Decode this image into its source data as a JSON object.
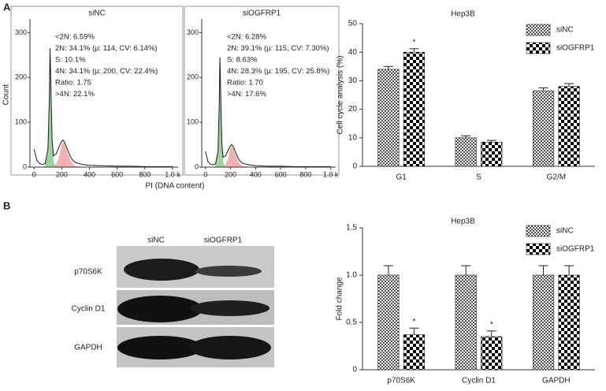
{
  "panel_labels": [
    "A",
    "B"
  ],
  "chart_data": [
    {
      "type": "line",
      "title": "siNC",
      "ylabel": "Count",
      "xlabel": "PI (DNA content)",
      "x": [
        0,
        20,
        40,
        60,
        80,
        100,
        110,
        115,
        120,
        130,
        140,
        160,
        180,
        200,
        210,
        220,
        240,
        260,
        280,
        300,
        350,
        400,
        500,
        600,
        700,
        800,
        900,
        1000
      ],
      "series": [
        {
          "color": "#1a1a1a",
          "values": [
            40,
            15,
            8,
            6,
            8,
            40,
            150,
            265,
            200,
            60,
            25,
            30,
            45,
            58,
            60,
            55,
            40,
            25,
            15,
            10,
            6,
            4,
            3,
            2,
            2,
            1,
            1,
            1
          ]
        },
        {
          "color": "#8fc98f",
          "fill": true,
          "values": [
            0,
            0,
            0,
            0,
            2,
            30,
            140,
            255,
            190,
            50,
            10,
            1,
            0,
            0,
            0,
            0,
            0,
            0,
            0,
            0,
            0,
            0,
            0,
            0,
            0,
            0,
            0,
            0
          ]
        },
        {
          "color": "#f2a3a3",
          "fill": true,
          "values": [
            0,
            0,
            0,
            0,
            0,
            0,
            0,
            0,
            0,
            0,
            0,
            5,
            20,
            50,
            55,
            50,
            30,
            15,
            6,
            2,
            0,
            0,
            0,
            0,
            0,
            0,
            0,
            0
          ]
        }
      ],
      "xlim": [
        -30,
        1040
      ],
      "ylim": [
        0,
        320
      ],
      "xticks": [
        0,
        200,
        400,
        600,
        800,
        {
          "value": 1000,
          "label": "1.0 k"
        }
      ],
      "yticks": [
        0,
        100,
        200,
        300
      ],
      "annotations": [
        "<2N: 6.59%",
        "2N: 34.1% (µ: 114, CV: 6.14%)",
        "S: 10.1%",
        "4N: 34.1% (µ: 200, CV: 22.4%)",
        "Ratio: 1.75",
        ">4N: 22.1%"
      ]
    },
    {
      "type": "line",
      "title": "siOGFRP1",
      "x": [
        0,
        20,
        40,
        60,
        80,
        100,
        110,
        115,
        120,
        130,
        140,
        160,
        180,
        200,
        210,
        220,
        240,
        260,
        280,
        300,
        350,
        400,
        500,
        600,
        700,
        800,
        900,
        1000
      ],
      "series": [
        {
          "color": "#1a1a1a",
          "values": [
            35,
            12,
            6,
            5,
            7,
            35,
            140,
            245,
            185,
            55,
            22,
            25,
            38,
            48,
            50,
            47,
            33,
            20,
            12,
            8,
            5,
            3,
            2,
            2,
            1,
            1,
            1,
            1
          ]
        },
        {
          "color": "#8fc98f",
          "fill": true,
          "values": [
            0,
            0,
            0,
            0,
            2,
            28,
            130,
            235,
            175,
            45,
            9,
            1,
            0,
            0,
            0,
            0,
            0,
            0,
            0,
            0,
            0,
            0,
            0,
            0,
            0,
            0,
            0,
            0
          ]
        },
        {
          "color": "#f2a3a3",
          "fill": true,
          "values": [
            0,
            0,
            0,
            0,
            0,
            0,
            0,
            0,
            0,
            0,
            0,
            4,
            17,
            42,
            46,
            42,
            25,
            12,
            5,
            2,
            0,
            0,
            0,
            0,
            0,
            0,
            0,
            0
          ]
        }
      ],
      "xlim": [
        -30,
        1040
      ],
      "ylim": [
        0,
        320
      ],
      "xticks": [
        0,
        200,
        400,
        600,
        800,
        {
          "value": 1000,
          "label": "1.0 k"
        }
      ],
      "yticks": [
        0,
        100,
        200,
        300
      ],
      "annotations": [
        "<2N: 6.28%",
        "2N: 39.1% (µ: 115, CV: 7.30%)",
        "S: 8.63%",
        "4N: 28.3% (µ: 195, CV: 25.8%)",
        "Ratio: 1.70",
        ">4N: 17.6%"
      ]
    },
    {
      "type": "bar",
      "title": "Hep3B",
      "ylabel": "Cell cycle analysis (%)",
      "categories": [
        "G1",
        "S",
        "G2/M"
      ],
      "series": [
        {
          "name": "siNC",
          "color": "#4d4d4d",
          "values": [
            34,
            10,
            26.5
          ],
          "errors": [
            1,
            0.7,
            1
          ]
        },
        {
          "name": "siOGFRP1",
          "color": "#000000",
          "values": [
            40,
            8.5,
            28
          ],
          "errors": [
            1.2,
            0.6,
            1
          ]
        }
      ],
      "ylim": [
        0,
        50
      ],
      "yticks": [
        0,
        10,
        20,
        30,
        40,
        50
      ],
      "stars": [
        {
          "text": "*",
          "category": 0,
          "series": 1
        }
      ]
    },
    {
      "type": "bar",
      "title": "Hep3B",
      "ylabel": "Fold change",
      "categories": [
        "p70S6K",
        "Cyclin D1",
        "GAPDH"
      ],
      "series": [
        {
          "name": "siNC",
          "color": "#4d4d4d",
          "values": [
            1,
            1,
            1
          ],
          "errors": [
            0.1,
            0.1,
            0.1
          ]
        },
        {
          "name": "siOGFRP1",
          "color": "#000000",
          "values": [
            0.37,
            0.35,
            1
          ],
          "errors": [
            0.07,
            0.06,
            0.1
          ]
        }
      ],
      "ylim": [
        0,
        1.5
      ],
      "yticks": [
        0,
        0.5,
        {
          "value": 1,
          "label": "1.0"
        },
        1.5
      ],
      "stars": [
        {
          "text": "*",
          "category": 0,
          "series": 1
        },
        {
          "text": "*",
          "category": 1,
          "series": 1
        }
      ]
    }
  ],
  "blot": {
    "columns": [
      "siNC",
      "siOGFRP1"
    ],
    "rows": [
      "p70S6K",
      "Cyclin D1",
      "GAPDH"
    ]
  }
}
